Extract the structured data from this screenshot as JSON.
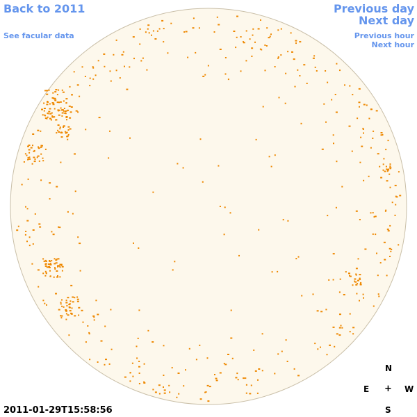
{
  "nav": {
    "back_label": "Back to 2011",
    "facular_label": "See facular data",
    "prev_day_label": "Previous day",
    "next_day_label": "Next day",
    "prev_hour_label": "Previous hour",
    "next_hour_label": "Next hour"
  },
  "timestamp": "2011-01-29T15:58:56",
  "compass": {
    "north": "N",
    "east": "E",
    "center": "+",
    "west": "W",
    "south": "S"
  },
  "colors": {
    "link": "#6495ed",
    "disk_fill": "#fdf8ec",
    "disk_outline": "#c9bfa8",
    "feature": "#ee8800"
  }
}
